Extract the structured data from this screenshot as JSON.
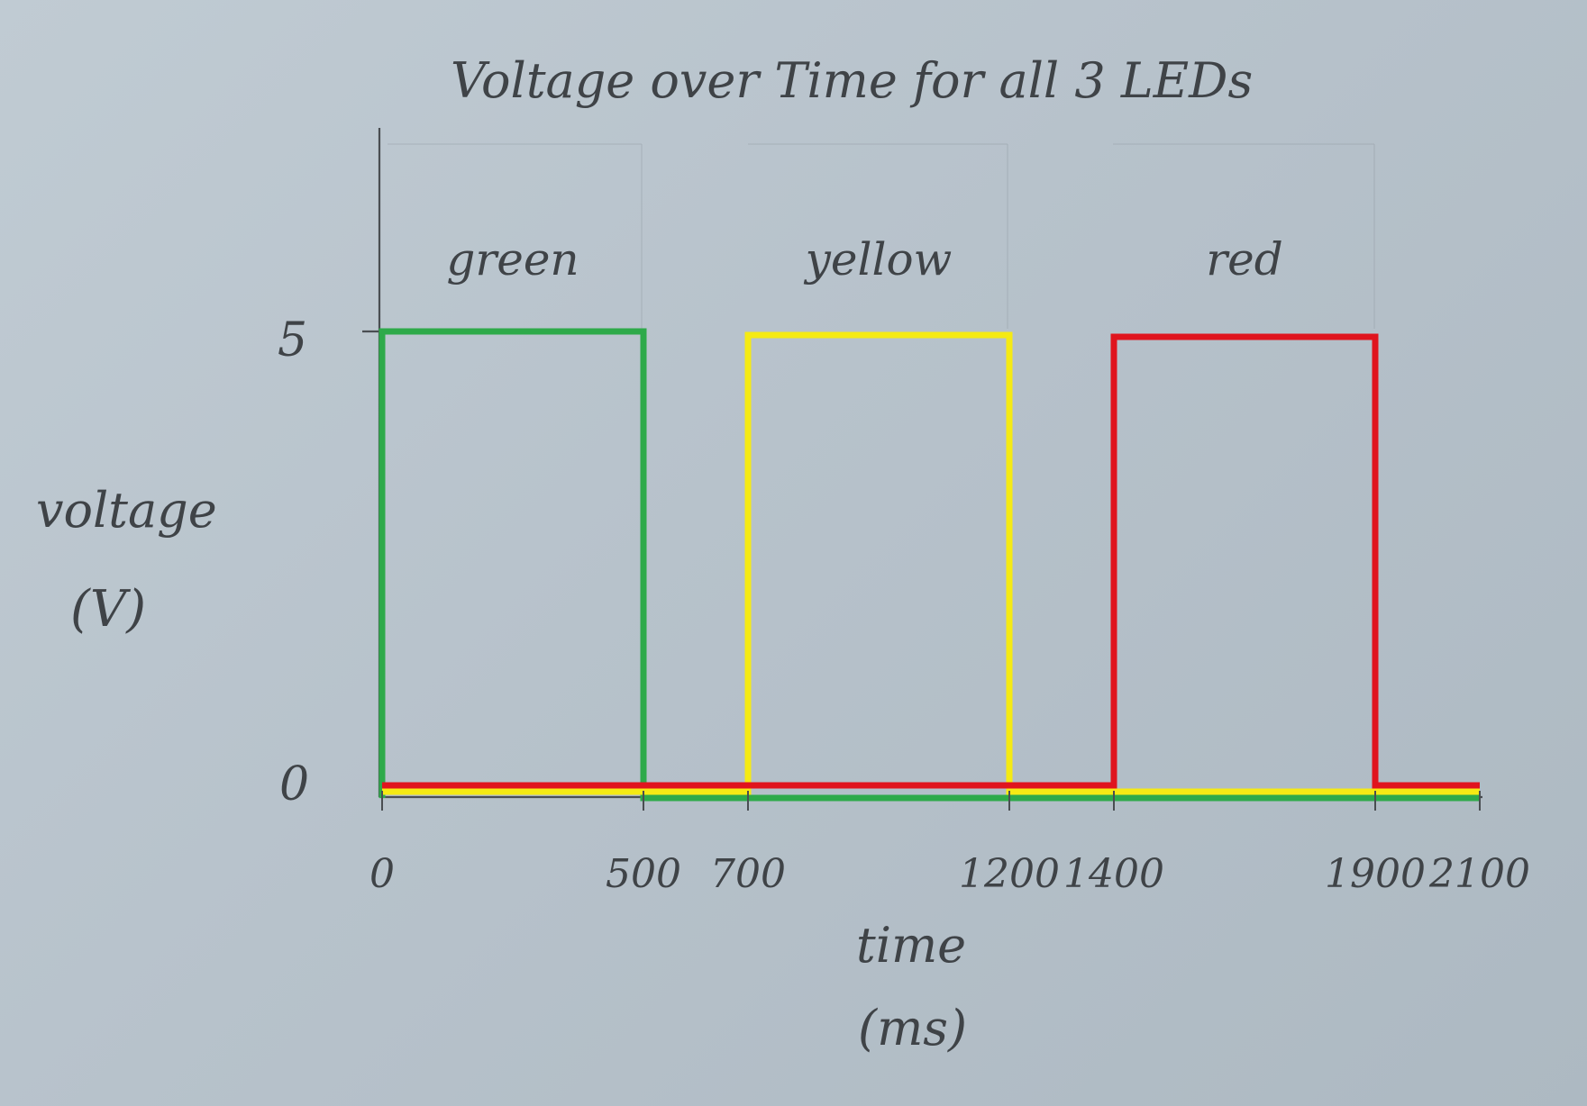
{
  "chart_data": {
    "type": "line",
    "title": "Voltage over Time for all 3 LEDs",
    "xlabel": "time",
    "xlabel_unit": "(ms)",
    "ylabel": "voltage",
    "ylabel_unit": "(V)",
    "x_ticks": [
      "0",
      "500",
      "700",
      "1200",
      "1400",
      "1900",
      "2100"
    ],
    "y_ticks": [
      "0",
      "5"
    ],
    "xlim": [
      0,
      2100
    ],
    "ylim": [
      0,
      5
    ],
    "grid": false,
    "series": [
      {
        "name": "green",
        "color": "#2eaa4a",
        "points": [
          [
            0,
            0
          ],
          [
            0,
            5
          ],
          [
            500,
            5
          ],
          [
            500,
            0
          ],
          [
            2100,
            0
          ]
        ]
      },
      {
        "name": "yellow",
        "color": "#f5ea14",
        "points": [
          [
            0,
            0
          ],
          [
            700,
            0
          ],
          [
            700,
            5
          ],
          [
            1200,
            5
          ],
          [
            1200,
            0
          ],
          [
            2100,
            0
          ]
        ]
      },
      {
        "name": "red",
        "color": "#e0141e",
        "points": [
          [
            0,
            0
          ],
          [
            1400,
            0
          ],
          [
            1400,
            5
          ],
          [
            1900,
            5
          ],
          [
            1900,
            0
          ],
          [
            2100,
            0
          ]
        ]
      }
    ]
  }
}
